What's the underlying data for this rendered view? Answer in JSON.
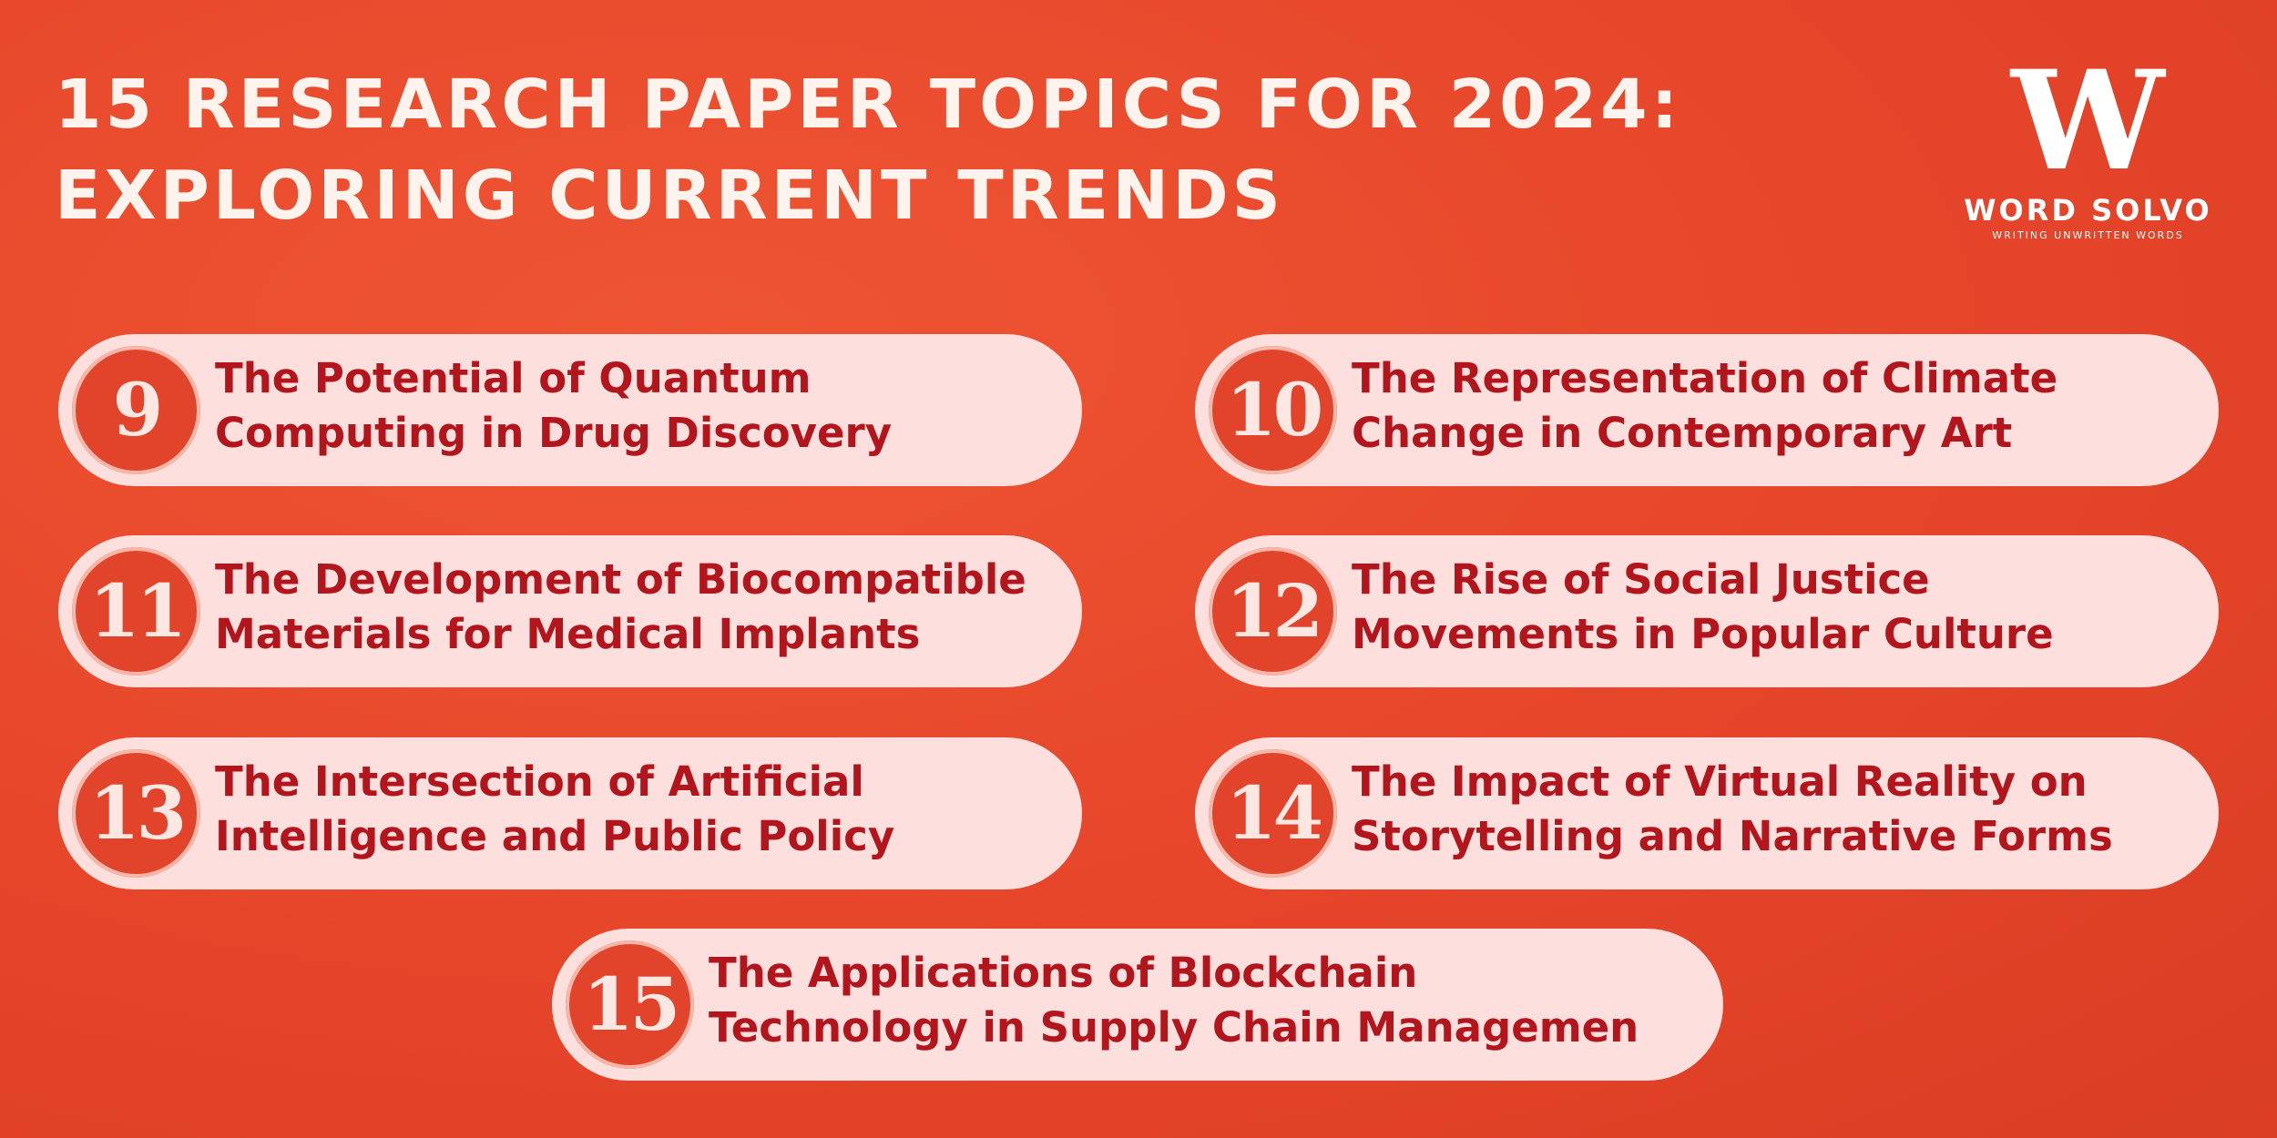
{
  "header": {
    "title_lines": [
      "15 RESEARCH PAPER TOPICS FOR 2024:",
      "EXPLORING CURRENT TRENDS"
    ]
  },
  "logo": {
    "mark": "W",
    "name": "WORD SOLVO",
    "tagline": "WRITING UNWRITTEN WORDS"
  },
  "items": [
    {
      "number": 9,
      "lines": [
        "The Potential of Quantum",
        "Computing in Drug Discovery"
      ]
    },
    {
      "number": 10,
      "lines": [
        "The Representation of Climate",
        "Change in Contemporary Art"
      ]
    },
    {
      "number": 11,
      "lines": [
        "The Development of Biocompatible",
        "Materials for Medical Implants"
      ]
    },
    {
      "number": 12,
      "lines": [
        "The Rise of Social Justice",
        "Movements in Popular Culture"
      ]
    },
    {
      "number": 13,
      "lines": [
        "The Intersection of Artificial",
        "Intelligence and Public Policy"
      ]
    },
    {
      "number": 14,
      "lines": [
        "The Impact of Virtual Reality on",
        "Storytelling and Narrative Forms"
      ]
    },
    {
      "number": 15,
      "lines": [
        "The Applications of Blockchain",
        "Technology in Supply Chain Managemen"
      ]
    }
  ]
}
